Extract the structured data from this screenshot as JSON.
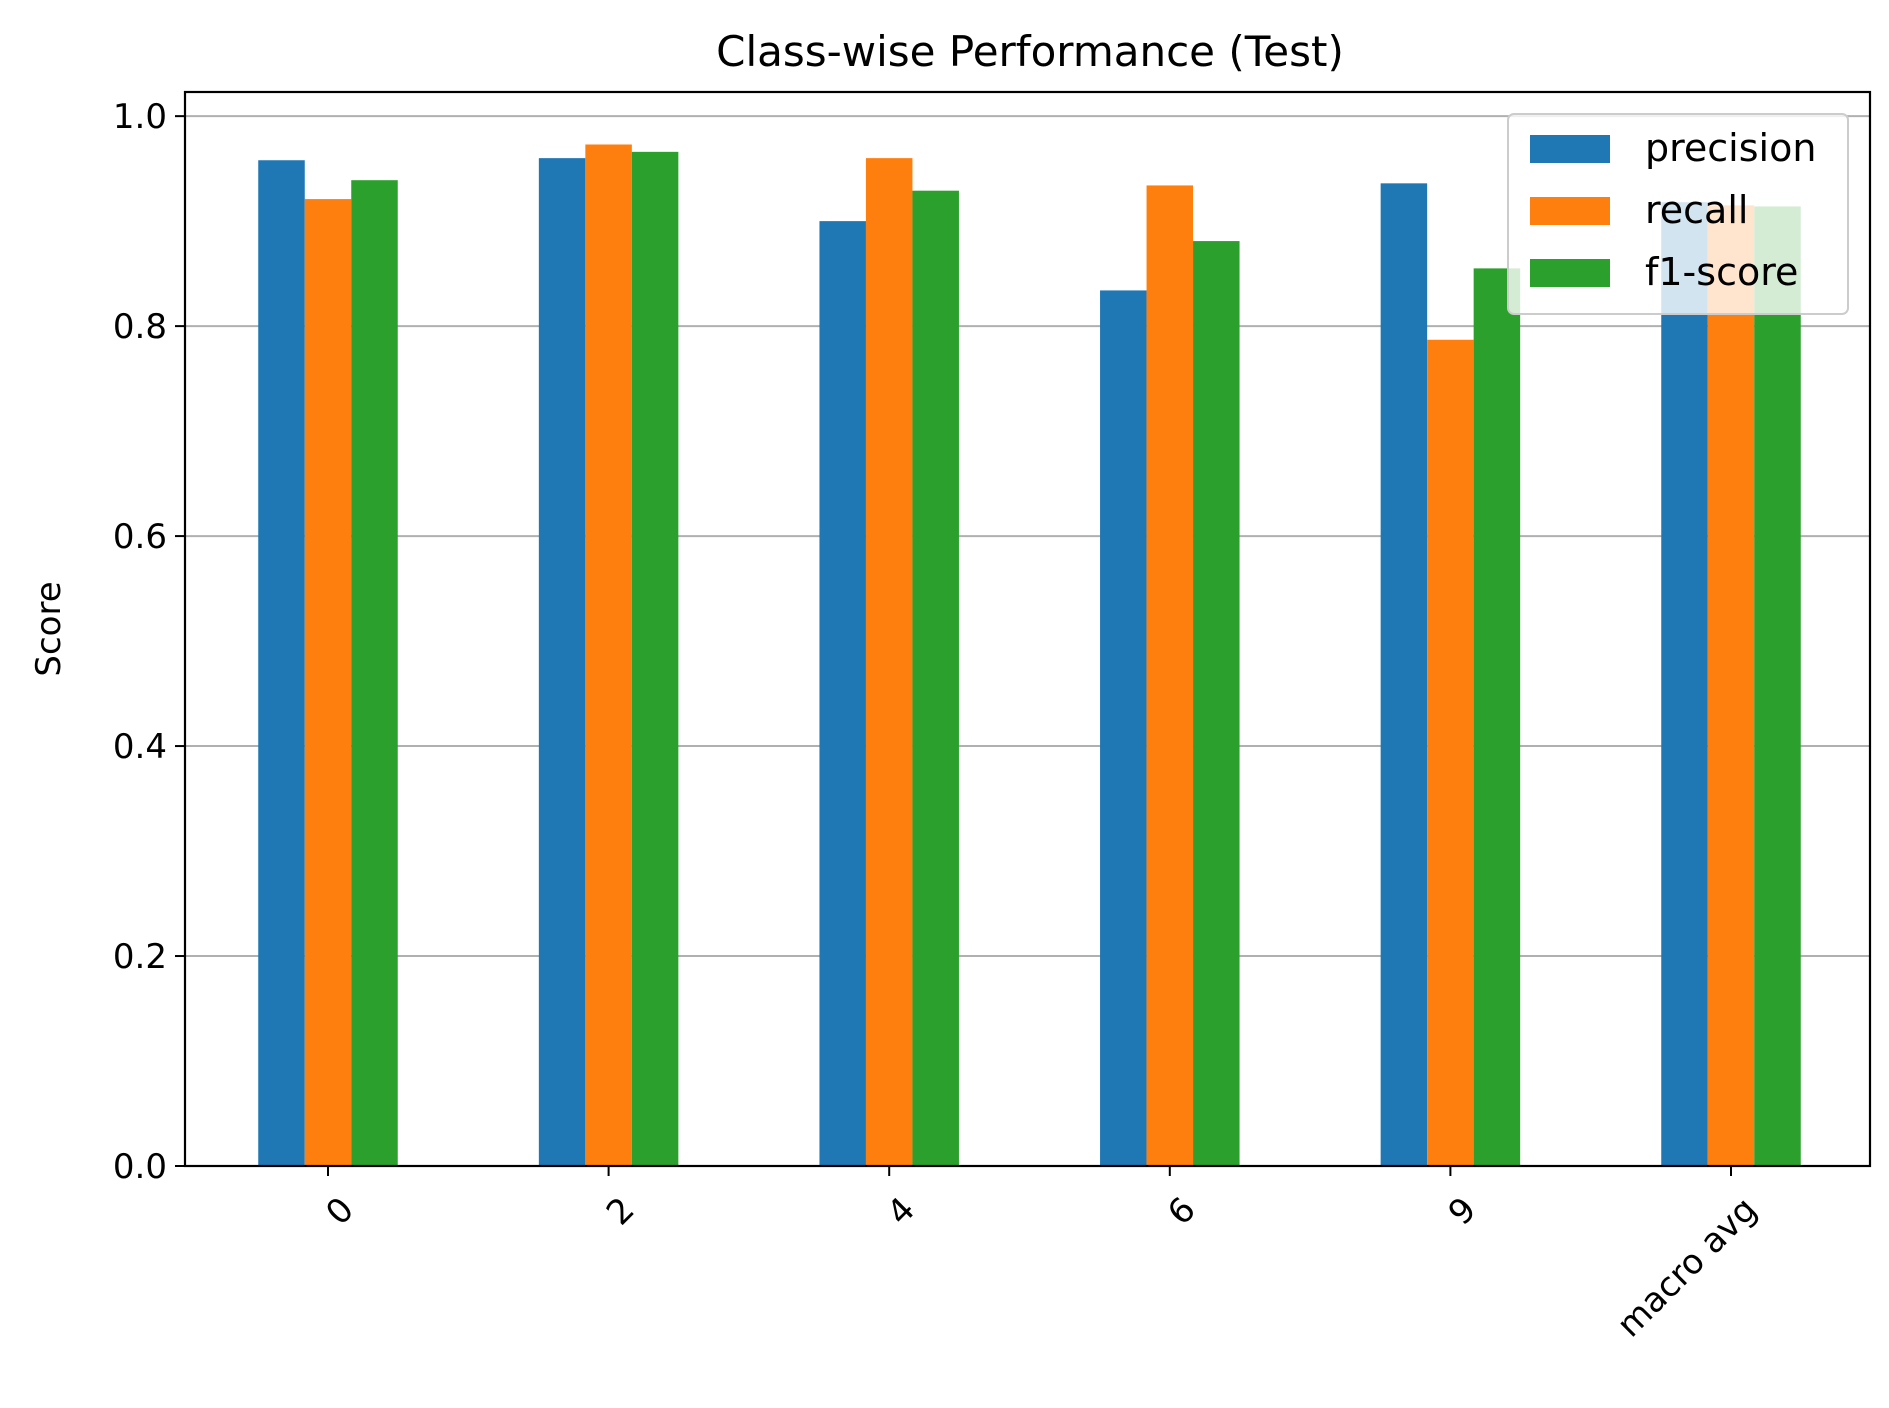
{
  "chart_data": {
    "type": "bar",
    "title": "Class-wise Performance (Test)",
    "xlabel": "",
    "ylabel": "Score",
    "categories": [
      "0",
      "2",
      "4",
      "6",
      "9",
      "macro avg"
    ],
    "series": [
      {
        "name": "precision",
        "color": "#1f77b4",
        "values": [
          0.958,
          0.96,
          0.9,
          0.834,
          0.936,
          0.918
        ]
      },
      {
        "name": "recall",
        "color": "#ff7f0e",
        "values": [
          0.921,
          0.973,
          0.96,
          0.934,
          0.787,
          0.915
        ]
      },
      {
        "name": "f1-score",
        "color": "#2ca02c",
        "values": [
          0.939,
          0.966,
          0.929,
          0.881,
          0.855,
          0.914
        ]
      }
    ],
    "ylim": [
      0,
      1.023
    ],
    "yticks": [
      "0.0",
      "0.2",
      "0.4",
      "0.6",
      "0.8",
      "1.0"
    ],
    "grid": "y",
    "legend_position": "top-right",
    "xtick_rotation": 45
  }
}
